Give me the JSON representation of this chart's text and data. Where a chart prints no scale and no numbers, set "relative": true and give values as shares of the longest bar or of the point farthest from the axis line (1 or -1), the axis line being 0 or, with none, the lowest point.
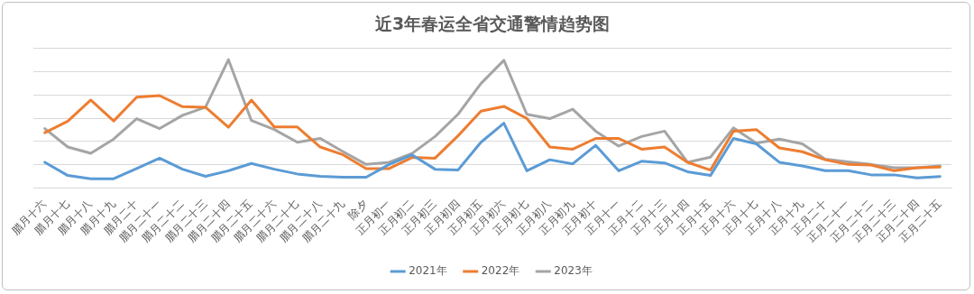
{
  "chart_data": {
    "type": "line",
    "title": "近3年春运全省交通警情趋势图",
    "relative": true,
    "grid": "y",
    "legend": "bottom",
    "marker": "none",
    "line_style": "solid",
    "categories": [
      "腊月十六",
      "腊月十七",
      "腊月十八",
      "腊月十九",
      "腊月二十",
      "腊月二十一",
      "腊月二十二",
      "腊月二十三",
      "腊月二十四",
      "腊月二十五",
      "腊月二十六",
      "腊月二十七",
      "腊月二十八",
      "腊月二十九",
      "除夕",
      "正月初一",
      "正月初二",
      "正月初三",
      "正月初四",
      "正月初五",
      "正月初六",
      "正月初七",
      "正月初八",
      "正月初九",
      "正月初十",
      "正月十一",
      "正月十二",
      "正月十三",
      "正月十四",
      "正月十五",
      "正月十六",
      "正月十七",
      "正月十八",
      "正月十九",
      "正月二十",
      "正月二十一",
      "正月二十二",
      "正月二十三",
      "正月二十四",
      "正月二十五"
    ],
    "series": [
      {
        "name": "2021年",
        "color": "#5b9bd5",
        "values": [
          0.2,
          0.097,
          0.072,
          0.072,
          0.151,
          0.232,
          0.146,
          0.091,
          0.134,
          0.191,
          0.146,
          0.109,
          0.091,
          0.084,
          0.084,
          0.183,
          0.258,
          0.146,
          0.139,
          0.356,
          0.505,
          0.134,
          0.22,
          0.188,
          0.332,
          0.134,
          0.208,
          0.195,
          0.126,
          0.097,
          0.386,
          0.344,
          0.2,
          0.171,
          0.134,
          0.134,
          0.102,
          0.102,
          0.079,
          0.089
        ]
      },
      {
        "name": "2022年",
        "color": "#ed7d31",
        "values": [
          0.431,
          0.52,
          0.685,
          0.522,
          0.708,
          0.72,
          0.633,
          0.629,
          0.473,
          0.685,
          0.475,
          0.475,
          0.319,
          0.258,
          0.151,
          0.151,
          0.238,
          0.232,
          0.406,
          0.599,
          0.636,
          0.542,
          0.319,
          0.302,
          0.386,
          0.386,
          0.302,
          0.319,
          0.2,
          0.139,
          0.443,
          0.455,
          0.312,
          0.282,
          0.22,
          0.183,
          0.178,
          0.134,
          0.158,
          0.163
        ]
      },
      {
        "name": "2023年",
        "color": "#a5a5a5",
        "values": [
          0.463,
          0.319,
          0.27,
          0.381,
          0.54,
          0.463,
          0.566,
          0.629,
          1.0,
          0.525,
          0.455,
          0.356,
          0.386,
          0.282,
          0.183,
          0.2,
          0.269,
          0.401,
          0.574,
          0.814,
          0.995,
          0.574,
          0.54,
          0.614,
          0.443,
          0.327,
          0.401,
          0.443,
          0.2,
          0.24,
          0.468,
          0.349,
          0.381,
          0.344,
          0.225,
          0.203,
          0.183,
          0.158,
          0.158,
          0.171
        ]
      }
    ]
  }
}
